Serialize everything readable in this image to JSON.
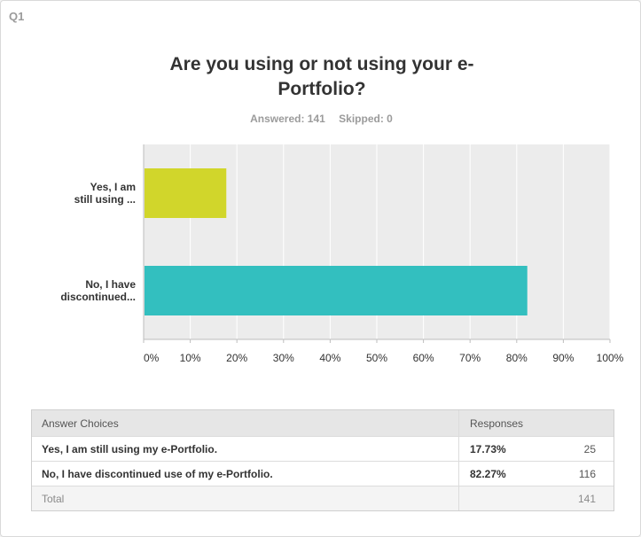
{
  "question_number": "Q1",
  "title": "Are you using or not using your e-Portfolio?",
  "answered_label": "Answered: 141",
  "skipped_label": "Skipped: 0",
  "chart_data": {
    "type": "bar",
    "orientation": "horizontal",
    "title": "Are you using or not using your e-Portfolio?",
    "categories": [
      "Yes, I am still using ...",
      "No, I have discontinued..."
    ],
    "category_lines": [
      [
        "Yes, I am",
        "still using ..."
      ],
      [
        "No, I have",
        "discontinued..."
      ]
    ],
    "values": [
      17.73,
      82.27
    ],
    "colors": [
      "#d1d62b",
      "#33bfbf"
    ],
    "xlim": [
      0,
      100
    ],
    "xticks": [
      "0%",
      "10%",
      "20%",
      "30%",
      "40%",
      "50%",
      "60%",
      "70%",
      "80%",
      "90%",
      "100%"
    ],
    "grid": true,
    "plot_background": "#ececec",
    "gridline_color": "#ffffff"
  },
  "table": {
    "header": {
      "choices": "Answer Choices",
      "responses": "Responses"
    },
    "rows": [
      {
        "choice": "Yes, I am still using my e-Portfolio.",
        "percent": "17.73%",
        "count": "25"
      },
      {
        "choice": "No, I have discontinued use of my e-Portfolio.",
        "percent": "82.27%",
        "count": "116"
      }
    ],
    "total": {
      "label": "Total",
      "count": "141"
    }
  }
}
